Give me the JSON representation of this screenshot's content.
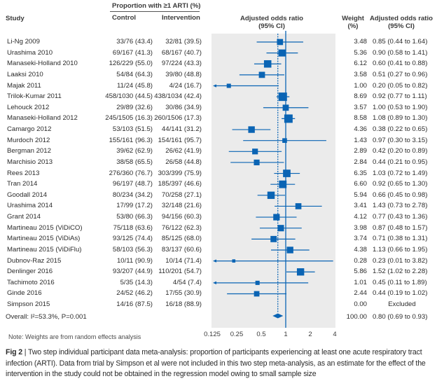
{
  "header": {
    "study": "Study",
    "proportion_group": "Proportion with ≥1 ARTI (%)",
    "control": "Control",
    "intervention": "Intervention",
    "or_plot_line1": "Adjusted odds ratio",
    "or_plot_line2": "(95% CI)",
    "weight_line1": "Weight",
    "weight_line2": "(%)",
    "or_text_line1": "Adjusted odds ratio",
    "or_text_line2": "(95% CI)"
  },
  "note": "Note: Weights are from random effects analysis",
  "caption": {
    "label": "Fig 2",
    "text": "Two step individual participant data meta-analysis: proportion of participants experiencing at least one acute respiratory tract infection (ARTI). Data from trial by Simpson et al were not included in this two step meta-analysis, as an estimate for the effect of the intervention in the study could not be obtained in the regression model owing to small sample size"
  },
  "colors": {
    "marker": "#0a64b4",
    "panel_bg": "#ebebeb",
    "text": "#2b2b2b"
  },
  "chart_data": {
    "type": "forest",
    "title": "Adjusted odds ratio (95% CI)",
    "xscale": "log2",
    "xlim": [
      0.125,
      4
    ],
    "xticks": [
      "0.125",
      "0.25",
      "0.5",
      "1",
      "2",
      "4"
    ],
    "reference_line": 1,
    "pooled_line": 0.8,
    "rows": [
      {
        "study": "Li-Ng 2009",
        "control": "33/76 (43.4)",
        "intervention": "32/81 (39.5)",
        "weight": "3.48",
        "or": 0.85,
        "lo": 0.44,
        "hi": 1.64,
        "or_text": "0.85 (0.44 to 1.64)"
      },
      {
        "study": "Urashima 2010",
        "control": "69/167 (41.3)",
        "intervention": "68/167 (40.7)",
        "weight": "5.36",
        "or": 0.9,
        "lo": 0.58,
        "hi": 1.41,
        "or_text": "0.90 (0.58 to 1.41)"
      },
      {
        "study": "Manaseki-Holland 2010",
        "control": "126/229 (55.0)",
        "intervention": "97/224 (43.3)",
        "weight": "6.12",
        "or": 0.6,
        "lo": 0.41,
        "hi": 0.88,
        "or_text": "0.60 (0.41 to 0.88)"
      },
      {
        "study": "Laaksi 2010",
        "control": "54/84 (64.3)",
        "intervention": "39/80 (48.8)",
        "weight": "3.58",
        "or": 0.51,
        "lo": 0.27,
        "hi": 0.96,
        "or_text": "0.51 (0.27 to 0.96)"
      },
      {
        "study": "Majak 2011",
        "control": "11/24 (45.8)",
        "intervention": "4/24 (16.7)",
        "weight": "1.00",
        "or": 0.2,
        "lo": 0.05,
        "hi": 0.82,
        "or_text": "0.20 (0.05 to 0.82)"
      },
      {
        "study": "Trilok-Kumar 2011",
        "control": "458/1030 (44.5)",
        "intervention": "438/1034 (42.4)",
        "weight": "8.69",
        "or": 0.92,
        "lo": 0.77,
        "hi": 1.11,
        "or_text": "0.92 (0.77 to 1.11)"
      },
      {
        "study": "Lehouck 2012",
        "control": "29/89 (32.6)",
        "intervention": "30/86 (34.9)",
        "weight": "3.57",
        "or": 1.0,
        "lo": 0.53,
        "hi": 1.9,
        "or_text": "1.00 (0.53 to 1.90)"
      },
      {
        "study": "Manaseki-Holland 2012",
        "control": "245/1505 (16.3)",
        "intervention": "260/1506 (17.3)",
        "weight": "8.58",
        "or": 1.08,
        "lo": 0.89,
        "hi": 1.3,
        "or_text": "1.08 (0.89 to 1.30)"
      },
      {
        "study": "Camargo 2012",
        "control": "53/103 (51.5)",
        "intervention": "44/141 (31.2)",
        "weight": "4.36",
        "or": 0.38,
        "lo": 0.22,
        "hi": 0.65,
        "or_text": "0.38 (0.22 to 0.65)"
      },
      {
        "study": "Murdoch 2012",
        "control": "155/161 (96.3)",
        "intervention": "154/161 (95.7)",
        "weight": "1.43",
        "or": 0.97,
        "lo": 0.3,
        "hi": 3.15,
        "or_text": "0.97 (0.30 to 3.15)"
      },
      {
        "study": "Bergman 2012",
        "control": "39/62 (62.9)",
        "intervention": "26/62 (41.9)",
        "weight": "2.89",
        "or": 0.42,
        "lo": 0.2,
        "hi": 0.89,
        "or_text": "0.42 (0.20 to 0.89)"
      },
      {
        "study": "Marchisio 2013",
        "control": "38/58 (65.5)",
        "intervention": "26/58 (44.8)",
        "weight": "2.84",
        "or": 0.44,
        "lo": 0.21,
        "hi": 0.95,
        "or_text": "0.44 (0.21 to 0.95)"
      },
      {
        "study": "Rees 2013",
        "control": "276/360 (76.7)",
        "intervention": "303/399 (75.9)",
        "weight": "6.35",
        "or": 1.03,
        "lo": 0.72,
        "hi": 1.49,
        "or_text": "1.03 (0.72 to 1.49)"
      },
      {
        "study": "Tran 2014",
        "control": "96/197 (48.7)",
        "intervention": "185/397 (46.6)",
        "weight": "6.60",
        "or": 0.92,
        "lo": 0.65,
        "hi": 1.3,
        "or_text": "0.92 (0.65 to 1.30)"
      },
      {
        "study": "Goodall 2014",
        "control": "80/234 (34.2)",
        "intervention": "70/258 (27.1)",
        "weight": "5.94",
        "or": 0.66,
        "lo": 0.45,
        "hi": 0.98,
        "or_text": "0.66 (0.45 to 0.98)"
      },
      {
        "study": "Urashima 2014",
        "control": "17/99 (17.2)",
        "intervention": "32/148 (21.6)",
        "weight": "3.41",
        "or": 1.43,
        "lo": 0.73,
        "hi": 2.78,
        "or_text": "1.43 (0.73 to 2.78)"
      },
      {
        "study": "Grant 2014",
        "control": "53/80 (66.3)",
        "intervention": "94/156 (60.3)",
        "weight": "4.12",
        "or": 0.77,
        "lo": 0.43,
        "hi": 1.36,
        "or_text": "0.77 (0.43 to 1.36)"
      },
      {
        "study": "Martineau 2015 (ViDiCO)",
        "control": "75/118 (63.6)",
        "intervention": "76/122 (62.3)",
        "weight": "3.98",
        "or": 0.87,
        "lo": 0.48,
        "hi": 1.57,
        "or_text": "0.87 (0.48 to 1.57)"
      },
      {
        "study": "Martineau 2015 (ViDiAs)",
        "control": "93/125 (74.4)",
        "intervention": "85/125 (68.0)",
        "weight": "3.74",
        "or": 0.71,
        "lo": 0.38,
        "hi": 1.31,
        "or_text": "0.71 (0.38 to 1.31)"
      },
      {
        "study": "Martineau 2015 (ViDiFlu)",
        "control": "58/103 (56.3)",
        "intervention": "83/137 (60.6)",
        "weight": "4.38",
        "or": 1.13,
        "lo": 0.66,
        "hi": 1.95,
        "or_text": "1.13 (0.66 to 1.95)"
      },
      {
        "study": "Dubnov-Raz 2015",
        "control": "10/11 (90.9)",
        "intervention": "10/14 (71.4)",
        "weight": "0.28",
        "or": 0.23,
        "lo": 0.01,
        "hi": 3.82,
        "or_text": "0.23 (0.01 to 3.82)"
      },
      {
        "study": "Denlinger 2016",
        "control": "93/207 (44.9)",
        "intervention": "110/201 (54.7)",
        "weight": "5.86",
        "or": 1.52,
        "lo": 1.02,
        "hi": 2.28,
        "or_text": "1.52 (1.02 to 2.28)"
      },
      {
        "study": "Tachimoto 2016",
        "control": "5/35 (14.3)",
        "intervention": "4/54 (7.4)",
        "weight": "1.01",
        "or": 0.45,
        "lo": 0.11,
        "hi": 1.89,
        "or_text": "0.45 (0.11 to 1.89)"
      },
      {
        "study": "Ginde 2016",
        "control": "24/52 (46.2)",
        "intervention": "17/55 (30.9)",
        "weight": "2.44",
        "or": 0.44,
        "lo": 0.19,
        "hi": 1.02,
        "or_text": "0.44 (0.19 to 1.02)"
      },
      {
        "study": "Simpson 2015",
        "control": "14/16 (87.5)",
        "intervention": "16/18 (88.9)",
        "weight": "0.00",
        "or": null,
        "lo": null,
        "hi": null,
        "or_text": "Excluded"
      }
    ],
    "overall": {
      "label": "Overall: I²=53.3%, P=0.001",
      "weight": "100.00",
      "or": 0.8,
      "lo": 0.69,
      "hi": 0.93,
      "or_text": "0.80 (0.69 to 0.93)"
    }
  }
}
